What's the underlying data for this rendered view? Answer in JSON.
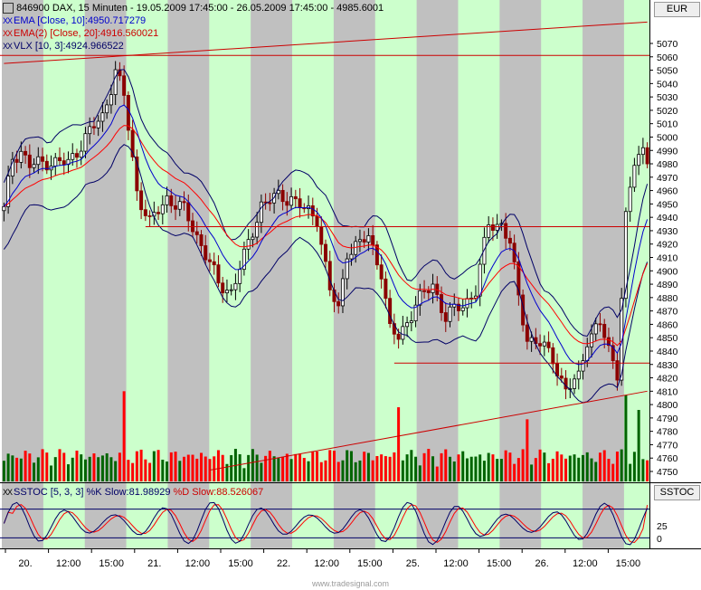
{
  "header": {
    "line1": "846900  DAX, 15 Minuten - 19.05.2009 17:45:00 - 26.05.2009 17:45:00 - 4985.6001",
    "line2": "EMA [Close, 10]:4950.717279",
    "line3": "EMA(2) [Close, 20]:4916.560021",
    "line4": "VLX [10, 3]:4924.966522",
    "ind_prefix": "XX"
  },
  "currency_label": "EUR",
  "sstoc_label": "SSTOC",
  "sstoc_header": {
    "p1": "SSTOC [5, 3, 3] %K Slow:81.98929",
    "p2": "%D Slow:88.526067"
  },
  "watermark": "www.tradesignal.com",
  "colors": {
    "band_green": "#ccffcc",
    "band_grey": "#c0c0c0",
    "candle_up": "#000000",
    "candle_down": "#8b0000",
    "ema10": "#0000cc",
    "ema20": "#ff0000",
    "vlx": "#000066",
    "vol_up": "#006400",
    "vol_down": "#ff0000",
    "stoch_k": "#000066",
    "stoch_d": "#ff0000",
    "trendline": "#cc0000"
  },
  "chart_data": [
    {
      "type": "candlestick",
      "title": "846900  DAX, 15 Minuten - 19.05.2009 17:45:00 - 26.05.2009 17:45:00 - 4985.6001",
      "x_ticks": [
        "20.",
        "12:00",
        "15:00",
        "21.",
        "12:00",
        "15:00",
        "22.",
        "12:00",
        "15:00",
        "25.",
        "12:00",
        "15:00",
        "26.",
        "12:00",
        "15:00"
      ],
      "y_ticks": [
        4750,
        4760,
        4770,
        4780,
        4790,
        4800,
        4810,
        4820,
        4830,
        4840,
        4850,
        4860,
        4870,
        4880,
        4890,
        4900,
        4910,
        4920,
        4930,
        4940,
        4950,
        4960,
        4970,
        4980,
        4990,
        5000,
        5010,
        5020,
        5030,
        5040,
        5050,
        5060,
        5070
      ],
      "ylim": [
        4745,
        5075
      ],
      "close_anchors": [
        [
          0,
          4945
        ],
        [
          2,
          4985
        ],
        [
          4,
          4990
        ],
        [
          6,
          4978
        ],
        [
          10,
          4982
        ],
        [
          15,
          4980
        ],
        [
          19,
          5000
        ],
        [
          23,
          5015
        ],
        [
          26,
          5050
        ],
        [
          28,
          5030
        ],
        [
          31,
          4960
        ],
        [
          34,
          4935
        ],
        [
          38,
          4955
        ],
        [
          42,
          4945
        ],
        [
          46,
          4920
        ],
        [
          50,
          4890
        ],
        [
          53,
          4885
        ],
        [
          56,
          4910
        ],
        [
          60,
          4950
        ],
        [
          64,
          4955
        ],
        [
          67,
          4955
        ],
        [
          70,
          4945
        ],
        [
          73,
          4940
        ],
        [
          76,
          4885
        ],
        [
          78,
          4870
        ],
        [
          80,
          4915
        ],
        [
          83,
          4920
        ],
        [
          85,
          4925
        ],
        [
          88,
          4900
        ],
        [
          90,
          4855
        ],
        [
          92,
          4850
        ],
        [
          96,
          4875
        ],
        [
          100,
          4890
        ],
        [
          103,
          4865
        ],
        [
          107,
          4875
        ],
        [
          110,
          4885
        ],
        [
          113,
          4935
        ],
        [
          116,
          4935
        ],
        [
          118,
          4920
        ],
        [
          120,
          4880
        ],
        [
          122,
          4850
        ],
        [
          125,
          4845
        ],
        [
          128,
          4835
        ],
        [
          131,
          4810
        ],
        [
          134,
          4820
        ],
        [
          136,
          4850
        ],
        [
          139,
          4860
        ],
        [
          141,
          4840
        ],
        [
          143,
          4825
        ],
        [
          145,
          4940
        ],
        [
          147,
          4980
        ],
        [
          149,
          4990
        ],
        [
          150,
          4985
        ]
      ],
      "ema10_last": 4950.717279,
      "ema20_last": 4916.560021,
      "vlx_last": 4924.966522,
      "horizontal_lines": [
        5061,
        4933,
        4831
      ],
      "trendlines": [
        {
          "from": [
            0,
            5055
          ],
          "to": [
            150,
            5086
          ]
        },
        {
          "from": [
            48,
            4751
          ],
          "to": [
            150,
            4810
          ]
        }
      ],
      "volume_spikes": [
        [
          28,
          4810
        ],
        [
          92,
          4798
        ],
        [
          122,
          4789
        ],
        [
          145,
          4807
        ],
        [
          148,
          4796
        ]
      ]
    },
    {
      "type": "line",
      "title": "SSTOC [5, 3, 3] %K Slow:81.98929 %D Slow:88.526067",
      "y_ticks": [
        0,
        25
      ],
      "levels": [
        20,
        80
      ],
      "series": [
        {
          "name": "%K Slow",
          "last": 81.98929
        },
        {
          "name": "%D Slow",
          "last": 88.526067
        }
      ]
    }
  ]
}
